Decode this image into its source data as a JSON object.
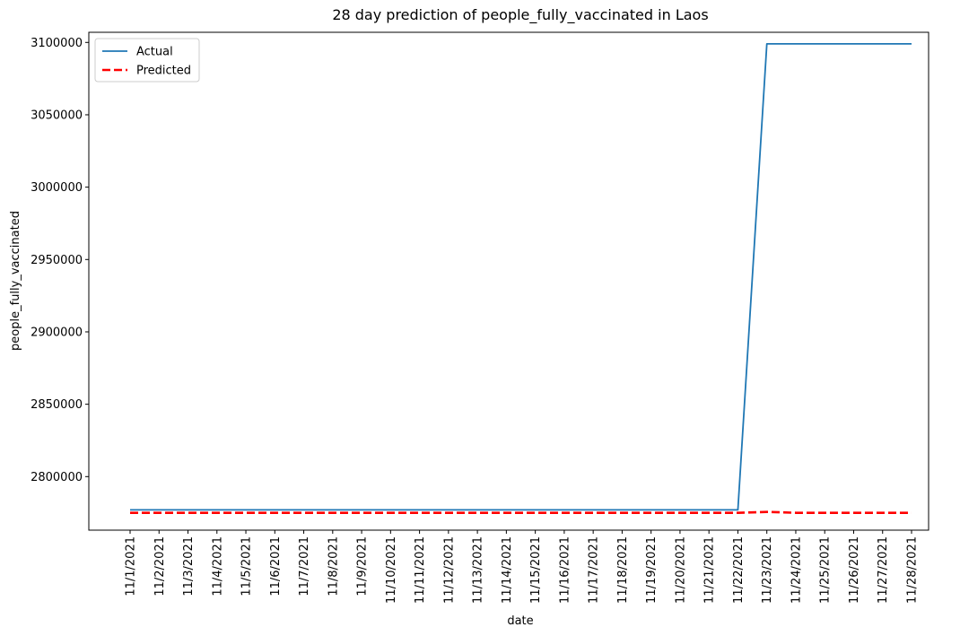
{
  "chart_data": {
    "type": "line",
    "title": "28 day prediction of people_fully_vaccinated in Laos",
    "xlabel": "date",
    "ylabel": "people_fully_vaccinated",
    "categories": [
      "11/1/2021",
      "11/2/2021",
      "11/3/2021",
      "11/4/2021",
      "11/5/2021",
      "11/6/2021",
      "11/7/2021",
      "11/8/2021",
      "11/9/2021",
      "11/10/2021",
      "11/11/2021",
      "11/12/2021",
      "11/13/2021",
      "11/14/2021",
      "11/15/2021",
      "11/16/2021",
      "11/17/2021",
      "11/18/2021",
      "11/19/2021",
      "11/20/2021",
      "11/21/2021",
      "11/22/2021",
      "11/23/2021",
      "11/24/2021",
      "11/25/2021",
      "11/26/2021",
      "11/27/2021",
      "11/28/2021"
    ],
    "yticks": [
      2800000,
      2850000,
      2900000,
      2950000,
      3000000,
      3050000,
      3100000
    ],
    "ytick_labels": [
      "2800000",
      "2850000",
      "2900000",
      "2950000",
      "3000000",
      "3050000",
      "3100000"
    ],
    "ylim": [
      2763000,
      3107000
    ],
    "legend_position": "top-left",
    "grid": false,
    "series": [
      {
        "name": "Actual",
        "color": "#1f77b4",
        "style": "solid",
        "values": [
          2777000,
          2777000,
          2777000,
          2777000,
          2777000,
          2777000,
          2777000,
          2777000,
          2777000,
          2777000,
          2777000,
          2777000,
          2777000,
          2777000,
          2777000,
          2777000,
          2777000,
          2777000,
          2777000,
          2777000,
          2777000,
          2777000,
          3099000,
          3099000,
          3099000,
          3099000,
          3099000,
          3099000
        ]
      },
      {
        "name": "Predicted",
        "color": "#ff0000",
        "style": "dashed",
        "values": [
          2775000,
          2775000,
          2775000,
          2775000,
          2775000,
          2775000,
          2775000,
          2775000,
          2775000,
          2775000,
          2775000,
          2775000,
          2775000,
          2775000,
          2775000,
          2775000,
          2775000,
          2775000,
          2775000,
          2775000,
          2775000,
          2775000,
          2775600,
          2775000,
          2775000,
          2775000,
          2775000,
          2775000
        ]
      }
    ]
  }
}
